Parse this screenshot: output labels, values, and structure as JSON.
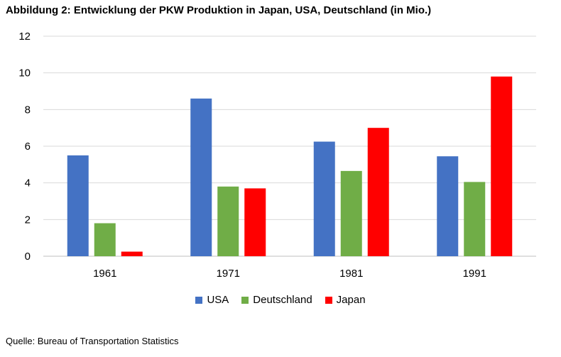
{
  "title": "Abbildung 2: Entwicklung der PKW Produktion in Japan, USA, Deutschland (in Mio.)",
  "source": "Quelle: Bureau of Transportation Statistics",
  "chart_data": {
    "type": "bar",
    "categories": [
      "1961",
      "1971",
      "1981",
      "1991"
    ],
    "series": [
      {
        "name": "USA",
        "color": "#4472C4",
        "values": [
          5.5,
          8.6,
          6.25,
          5.45
        ]
      },
      {
        "name": "Deutschland",
        "color": "#70AD47",
        "values": [
          1.8,
          3.8,
          4.65,
          4.05
        ]
      },
      {
        "name": "Japan",
        "color": "#FF0000",
        "values": [
          0.25,
          3.7,
          7.0,
          9.8
        ]
      }
    ],
    "ylim": [
      0,
      12
    ],
    "yticks": [
      "0",
      "2",
      "4",
      "6",
      "8",
      "10",
      "12"
    ],
    "grid": true,
    "legend_position": "bottom"
  }
}
